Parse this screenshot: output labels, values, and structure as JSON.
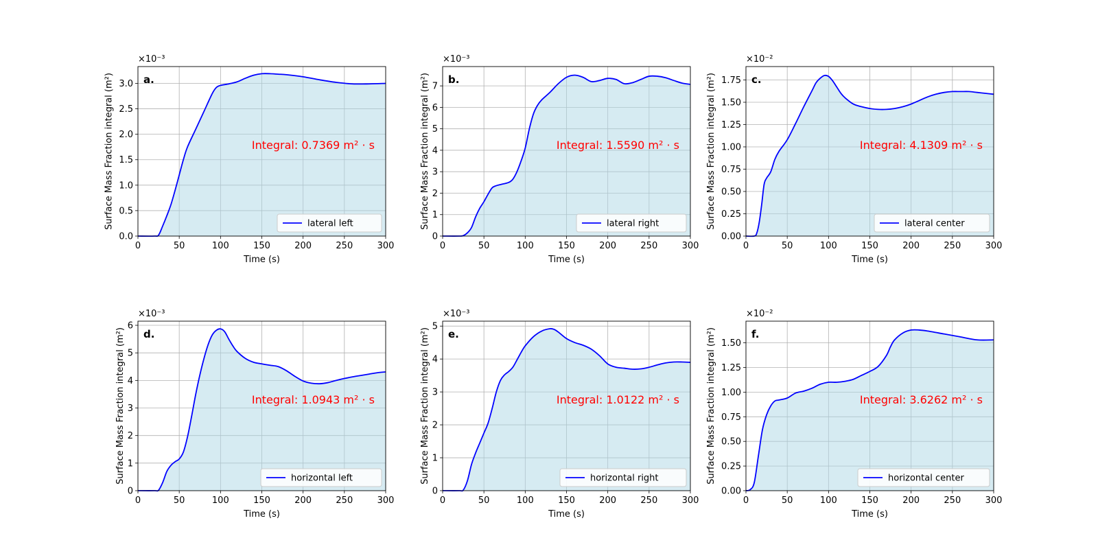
{
  "colors": {
    "line": "#0000ff",
    "fill": "#add8e6",
    "annotation": "#ff0000",
    "grid": "#b0b0b0"
  },
  "chart_data": [
    {
      "type": "area",
      "panel": "a.",
      "xlabel": "Time (s)",
      "ylabel": "Surface Mass Fraction integral (m²)",
      "exponent": "×10⁻³",
      "scale": 0.001,
      "xlim": [
        0,
        300
      ],
      "ylim": [
        0,
        3.33
      ],
      "xticks": [
        0,
        50,
        100,
        150,
        200,
        250,
        300
      ],
      "yticks": [
        0.0,
        0.5,
        1.0,
        1.5,
        2.0,
        2.5,
        3.0
      ],
      "ytick_labels": [
        "0.0",
        "0.5",
        "1.0",
        "1.5",
        "2.0",
        "2.5",
        "3.0"
      ],
      "annotation": "Integral: 0.7369 m² · s",
      "legend": "lateral left",
      "legend_placement": "lower-right",
      "grid": true,
      "series": [
        {
          "name": "lateral left",
          "x": [
            0,
            20,
            25,
            30,
            35,
            40,
            45,
            50,
            55,
            60,
            70,
            80,
            90,
            95,
            100,
            110,
            120,
            130,
            140,
            150,
            160,
            170,
            180,
            200,
            220,
            240,
            260,
            280,
            300
          ],
          "y": [
            0,
            0,
            0.02,
            0.2,
            0.4,
            0.62,
            0.9,
            1.2,
            1.5,
            1.75,
            2.1,
            2.45,
            2.8,
            2.92,
            2.96,
            2.99,
            3.03,
            3.1,
            3.16,
            3.19,
            3.19,
            3.18,
            3.17,
            3.13,
            3.07,
            3.02,
            2.99,
            2.99,
            3.0
          ]
        }
      ]
    },
    {
      "type": "area",
      "panel": "b.",
      "xlabel": "Time (s)",
      "ylabel": "Surface Mass Fraction integral (m²)",
      "exponent": "×10⁻³",
      "scale": 0.001,
      "xlim": [
        0,
        300
      ],
      "ylim": [
        0,
        7.9
      ],
      "xticks": [
        0,
        50,
        100,
        150,
        200,
        250,
        300
      ],
      "yticks": [
        0,
        1,
        2,
        3,
        4,
        5,
        6,
        7
      ],
      "ytick_labels": [
        "0",
        "1",
        "2",
        "3",
        "4",
        "5",
        "6",
        "7"
      ],
      "annotation": "Integral: 1.5590 m² · s",
      "legend": "lateral right",
      "legend_placement": "lower-right",
      "grid": true,
      "series": [
        {
          "name": "lateral right",
          "x": [
            0,
            20,
            25,
            30,
            35,
            40,
            45,
            50,
            55,
            60,
            65,
            70,
            80,
            85,
            90,
            95,
            100,
            105,
            110,
            115,
            120,
            130,
            140,
            150,
            160,
            170,
            180,
            190,
            200,
            210,
            220,
            230,
            240,
            250,
            260,
            270,
            280,
            290,
            300
          ],
          "y": [
            0,
            0,
            0.02,
            0.15,
            0.4,
            0.9,
            1.3,
            1.6,
            1.95,
            2.25,
            2.35,
            2.4,
            2.5,
            2.65,
            3.0,
            3.5,
            4.1,
            5.0,
            5.7,
            6.1,
            6.35,
            6.7,
            7.1,
            7.4,
            7.5,
            7.4,
            7.2,
            7.25,
            7.35,
            7.3,
            7.1,
            7.15,
            7.3,
            7.45,
            7.45,
            7.38,
            7.25,
            7.13,
            7.07
          ]
        }
      ]
    },
    {
      "type": "area",
      "panel": "c.",
      "xlabel": "Time (s)",
      "ylabel": "Surface Mass Fraction integral (m²)",
      "exponent": "×10⁻²",
      "scale": 0.01,
      "xlim": [
        0,
        300
      ],
      "ylim": [
        0,
        1.9
      ],
      "xticks": [
        0,
        50,
        100,
        150,
        200,
        250,
        300
      ],
      "yticks": [
        0.0,
        0.25,
        0.5,
        0.75,
        1.0,
        1.25,
        1.5,
        1.75
      ],
      "ytick_labels": [
        "0.00",
        "0.25",
        "0.50",
        "0.75",
        "1.00",
        "1.25",
        "1.50",
        "1.75"
      ],
      "annotation": "Integral: 4.1309 m² · s",
      "legend": "lateral center",
      "legend_placement": "lower-right",
      "grid": true,
      "series": [
        {
          "name": "lateral center",
          "x": [
            0,
            10,
            13,
            16,
            19,
            22,
            25,
            30,
            35,
            40,
            50,
            60,
            70,
            80,
            85,
            90,
            95,
            100,
            105,
            110,
            115,
            120,
            130,
            140,
            150,
            160,
            170,
            180,
            190,
            200,
            210,
            220,
            230,
            240,
            250,
            260,
            270,
            280,
            290,
            300
          ],
          "y": [
            0,
            0,
            0.03,
            0.15,
            0.35,
            0.58,
            0.65,
            0.72,
            0.86,
            0.95,
            1.08,
            1.26,
            1.45,
            1.63,
            1.72,
            1.77,
            1.8,
            1.79,
            1.74,
            1.67,
            1.6,
            1.55,
            1.48,
            1.45,
            1.43,
            1.42,
            1.42,
            1.43,
            1.45,
            1.48,
            1.52,
            1.56,
            1.59,
            1.61,
            1.62,
            1.62,
            1.62,
            1.61,
            1.6,
            1.59
          ]
        }
      ]
    },
    {
      "type": "area",
      "panel": "d.",
      "xlabel": "Time (s)",
      "ylabel": "Surface Mass Fraction integral (m²)",
      "exponent": "×10⁻³",
      "scale": 0.001,
      "xlim": [
        0,
        300
      ],
      "ylim": [
        0,
        6.15
      ],
      "xticks": [
        0,
        50,
        100,
        150,
        200,
        250,
        300
      ],
      "yticks": [
        0,
        1,
        2,
        3,
        4,
        5,
        6
      ],
      "ytick_labels": [
        "0",
        "1",
        "2",
        "3",
        "4",
        "5",
        "6"
      ],
      "annotation": "Integral: 1.0943 m² · s",
      "legend": "horizontal left",
      "legend_placement": "lower-right",
      "grid": true,
      "series": [
        {
          "name": "horizontal left",
          "x": [
            0,
            20,
            25,
            30,
            35,
            40,
            45,
            50,
            55,
            60,
            65,
            70,
            75,
            80,
            85,
            90,
            95,
            100,
            105,
            110,
            115,
            120,
            130,
            140,
            150,
            160,
            170,
            180,
            190,
            200,
            210,
            220,
            230,
            240,
            250,
            260,
            270,
            280,
            290,
            300
          ],
          "y": [
            0,
            0,
            0.02,
            0.3,
            0.7,
            0.92,
            1.05,
            1.15,
            1.4,
            1.95,
            2.7,
            3.5,
            4.2,
            4.8,
            5.3,
            5.65,
            5.82,
            5.87,
            5.77,
            5.5,
            5.25,
            5.05,
            4.8,
            4.66,
            4.6,
            4.55,
            4.5,
            4.35,
            4.15,
            3.98,
            3.9,
            3.88,
            3.92,
            4.0,
            4.07,
            4.13,
            4.18,
            4.23,
            4.28,
            4.31
          ]
        }
      ]
    },
    {
      "type": "area",
      "panel": "e.",
      "xlabel": "Time (s)",
      "ylabel": "Surface Mass Fraction integral (m²)",
      "exponent": "×10⁻³",
      "scale": 0.001,
      "xlim": [
        0,
        300
      ],
      "ylim": [
        0,
        5.15
      ],
      "xticks": [
        0,
        50,
        100,
        150,
        200,
        250,
        300
      ],
      "yticks": [
        0,
        1,
        2,
        3,
        4,
        5
      ],
      "ytick_labels": [
        "0",
        "1",
        "2",
        "3",
        "4",
        "5"
      ],
      "annotation": "Integral: 1.0122 m² · s",
      "legend": "horizontal right",
      "legend_placement": "lower-right",
      "grid": true,
      "series": [
        {
          "name": "horizontal right",
          "x": [
            0,
            20,
            25,
            30,
            35,
            40,
            45,
            50,
            55,
            60,
            65,
            70,
            75,
            80,
            85,
            90,
            95,
            100,
            110,
            120,
            130,
            135,
            140,
            150,
            160,
            170,
            180,
            190,
            200,
            210,
            220,
            230,
            240,
            250,
            260,
            270,
            280,
            290,
            300
          ],
          "y": [
            0,
            0,
            0.02,
            0.3,
            0.8,
            1.15,
            1.45,
            1.75,
            2.05,
            2.5,
            3.0,
            3.35,
            3.52,
            3.62,
            3.75,
            3.97,
            4.2,
            4.4,
            4.68,
            4.85,
            4.92,
            4.9,
            4.82,
            4.62,
            4.5,
            4.42,
            4.3,
            4.1,
            3.85,
            3.75,
            3.72,
            3.69,
            3.7,
            3.75,
            3.82,
            3.88,
            3.91,
            3.91,
            3.9
          ]
        }
      ]
    },
    {
      "type": "area",
      "panel": "f.",
      "xlabel": "Time (s)",
      "ylabel": "Surface Mass Fraction integral (m²)",
      "exponent": "×10⁻²",
      "scale": 0.01,
      "xlim": [
        0,
        300
      ],
      "ylim": [
        0,
        1.72
      ],
      "xticks": [
        0,
        50,
        100,
        150,
        200,
        250,
        300
      ],
      "yticks": [
        0.0,
        0.25,
        0.5,
        0.75,
        1.0,
        1.25,
        1.5
      ],
      "ytick_labels": [
        "0.00",
        "0.25",
        "0.50",
        "0.75",
        "1.00",
        "1.25",
        "1.50"
      ],
      "annotation": "Integral: 3.6262 m² · s",
      "legend": "horizontal center",
      "legend_placement": "lower-right",
      "grid": true,
      "series": [
        {
          "name": "horizontal center",
          "x": [
            0,
            5,
            10,
            15,
            20,
            25,
            30,
            35,
            40,
            50,
            60,
            70,
            80,
            90,
            100,
            110,
            120,
            130,
            140,
            150,
            160,
            170,
            175,
            180,
            190,
            200,
            210,
            220,
            240,
            260,
            280,
            300
          ],
          "y": [
            0,
            0.01,
            0.08,
            0.35,
            0.62,
            0.77,
            0.86,
            0.91,
            0.92,
            0.94,
            0.99,
            1.01,
            1.04,
            1.08,
            1.1,
            1.1,
            1.11,
            1.13,
            1.17,
            1.21,
            1.26,
            1.37,
            1.46,
            1.53,
            1.6,
            1.63,
            1.63,
            1.62,
            1.59,
            1.56,
            1.53,
            1.53
          ]
        }
      ]
    }
  ]
}
